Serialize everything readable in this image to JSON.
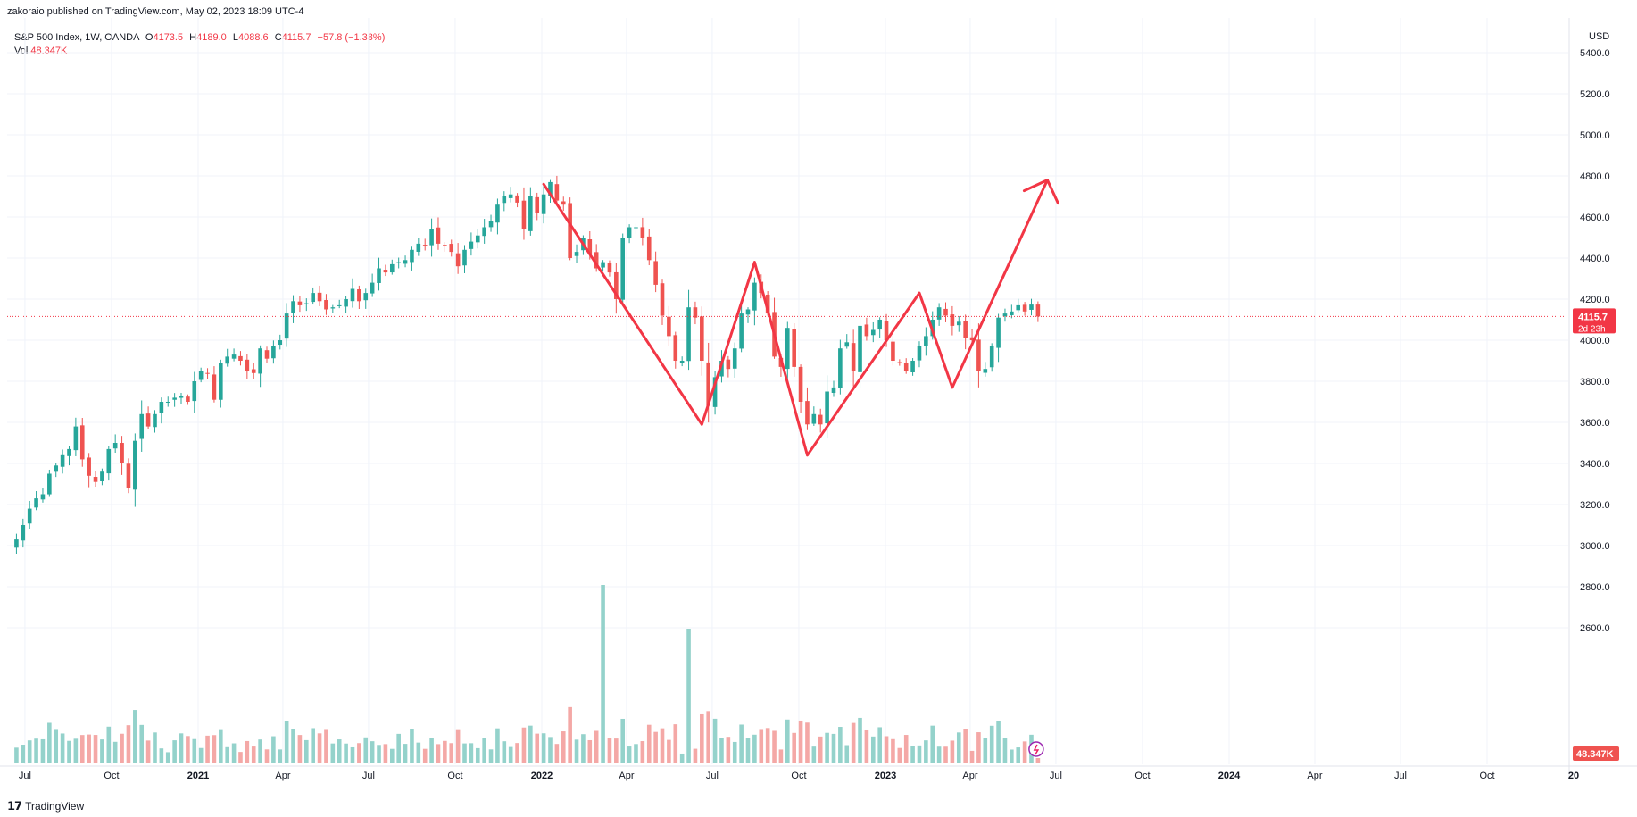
{
  "header": {
    "published_text": "zakoraio published on TradingView.com, May 02, 2023 18:09 UTC-4"
  },
  "legend": {
    "symbol": "S&P 500 Index, 1W, OANDA",
    "open_label": "O",
    "open": "4173.5",
    "high_label": "H",
    "high": "4189.0",
    "low_label": "L",
    "low": "4088.6",
    "close_label": "C",
    "close": "4115.7",
    "change": "−57.8 (−1.38%)",
    "vol_label": "Vol",
    "vol": "48.347K"
  },
  "price_axis": {
    "currency": "USD",
    "last_price": "4115.7",
    "countdown": "2d 23h",
    "last_volume": "48.347K"
  },
  "footer": {
    "brand": "TradingView"
  },
  "colors": {
    "up": "#26a69a",
    "down": "#ef5350",
    "up_vol": "#94d2cb",
    "down_vol": "#f4a8a6",
    "drawing": "#f23645"
  },
  "chart_data": {
    "type": "candlestick",
    "title": "S&P 500 Index, 1W, OANDA",
    "ylim": [
      2500,
      5500
    ],
    "y_ticks": [
      2600,
      2800,
      3000,
      3200,
      3400,
      3600,
      3800,
      4000,
      4200,
      4400,
      4600,
      4800,
      5000,
      5200,
      5400
    ],
    "x_ticks": [
      {
        "label": "Jul",
        "date": "2020-07-01"
      },
      {
        "label": "Oct",
        "date": "2020-10-01"
      },
      {
        "label": "2021",
        "date": "2021-01-01",
        "bold": true
      },
      {
        "label": "Apr",
        "date": "2021-04-01"
      },
      {
        "label": "Jul",
        "date": "2021-07-01"
      },
      {
        "label": "Oct",
        "date": "2021-10-01"
      },
      {
        "label": "2022",
        "date": "2022-01-01",
        "bold": true
      },
      {
        "label": "Apr",
        "date": "2022-04-01"
      },
      {
        "label": "Jul",
        "date": "2022-07-01"
      },
      {
        "label": "Oct",
        "date": "2022-10-01"
      },
      {
        "label": "2023",
        "date": "2023-01-01",
        "bold": true
      },
      {
        "label": "Apr",
        "date": "2023-04-01"
      },
      {
        "label": "Jul",
        "date": "2023-07-01"
      },
      {
        "label": "Oct",
        "date": "2023-10-01"
      },
      {
        "label": "2024",
        "date": "2024-01-01",
        "bold": true
      },
      {
        "label": "Apr",
        "date": "2024-04-01"
      },
      {
        "label": "Jul",
        "date": "2024-07-01"
      },
      {
        "label": "Oct",
        "date": "2024-10-01"
      },
      {
        "label": "20",
        "date": "2025-01-01",
        "bold": true
      }
    ],
    "first_week": "2020-06-22",
    "closes": [
      3030,
      3100,
      3180,
      3230,
      3250,
      3350,
      3390,
      3440,
      3470,
      3580,
      3420,
      3340,
      3310,
      3360,
      3470,
      3500,
      3400,
      3280,
      3510,
      3640,
      3580,
      3640,
      3700,
      3700,
      3720,
      3730,
      3700,
      3800,
      3850,
      3840,
      3710,
      3890,
      3920,
      3930,
      3900,
      3850,
      3840,
      3960,
      3910,
      3970,
      4000,
      4130,
      4190,
      4170,
      4180,
      4230,
      4190,
      4150,
      4160,
      4170,
      4200,
      4250,
      4190,
      4230,
      4280,
      4350,
      4330,
      4370,
      4380,
      4390,
      4440,
      4470,
      4460,
      4540,
      4470,
      4460,
      4430,
      4360,
      4440,
      4480,
      4510,
      4550,
      4580,
      4660,
      4700,
      4710,
      4670,
      4540,
      4700,
      4620,
      4710,
      4770,
      4680,
      4660,
      4400,
      4430,
      4500,
      4420,
      4350,
      4380,
      4330,
      4200,
      4500,
      4550,
      4550,
      4500,
      4390,
      4270,
      4120,
      4020,
      3900,
      3900,
      4160,
      4110,
      3900,
      3680,
      3820,
      3900,
      3860,
      3960,
      4130,
      4150,
      4280,
      4230,
      4130,
      3920,
      3870,
      4060,
      3870,
      3700,
      3590,
      3640,
      3590,
      3750,
      3770,
      3960,
      3990,
      3850,
      4070,
      4020,
      4050,
      4100,
      4000,
      3900,
      3890,
      3850,
      3900,
      3970,
      4020,
      4100,
      4160,
      4120,
      4070,
      4090,
      4010,
      4000,
      3850,
      3860,
      3970,
      4110,
      4130,
      4140,
      4170,
      4140,
      4173.5,
      4115.7
    ],
    "ohlc_last": {
      "open": 4173.5,
      "high": 4189.0,
      "low": 4088.6,
      "close": 4115.7
    },
    "volume_unit": "K",
    "last_volume": 48.347,
    "drawing": {
      "type": "path",
      "points": [
        {
          "date": "2022-01-03",
          "price": 4760
        },
        {
          "date": "2022-06-20",
          "price": 3590
        },
        {
          "date": "2022-08-15",
          "price": 4380
        },
        {
          "date": "2022-10-10",
          "price": 3440
        },
        {
          "date": "2023-02-06",
          "price": 4230
        },
        {
          "date": "2023-03-13",
          "price": 3770
        },
        {
          "date": "2023-06-22",
          "price": 4780
        }
      ]
    }
  }
}
